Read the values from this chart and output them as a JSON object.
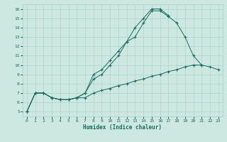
{
  "xlabel": "Humidex (Indice chaleur)",
  "bg_color": "#cce8e0",
  "line_color": "#1a6b60",
  "grid_color": "#aad4cc",
  "xlim": [
    -0.5,
    23.5
  ],
  "ylim": [
    4.5,
    16.5
  ],
  "xticks": [
    0,
    1,
    2,
    3,
    4,
    5,
    6,
    7,
    8,
    9,
    10,
    11,
    12,
    13,
    14,
    15,
    16,
    17,
    18,
    19,
    20,
    21,
    22,
    23
  ],
  "yticks": [
    5,
    6,
    7,
    8,
    9,
    10,
    11,
    12,
    13,
    14,
    15,
    16
  ],
  "line1_x": [
    0,
    1,
    2,
    3,
    4,
    5,
    6,
    7,
    8,
    9,
    10,
    11,
    12,
    13,
    14,
    15,
    16,
    17,
    18,
    19,
    20,
    21,
    22,
    23
  ],
  "line1_y": [
    5.0,
    7.0,
    7.0,
    6.5,
    6.3,
    6.3,
    6.5,
    6.5,
    7.0,
    7.3,
    7.5,
    7.8,
    8.0,
    8.3,
    8.5,
    8.8,
    9.0,
    9.3,
    9.5,
    9.8,
    10.0,
    10.0,
    9.8,
    9.5
  ],
  "line2_x": [
    0,
    1,
    2,
    3,
    4,
    5,
    6,
    7,
    8,
    9,
    10,
    11,
    12,
    13,
    14,
    15,
    16,
    17,
    18,
    19,
    20,
    21,
    22,
    23
  ],
  "line2_y": [
    5.0,
    7.0,
    7.0,
    6.5,
    6.3,
    6.3,
    6.5,
    7.0,
    8.5,
    9.0,
    10.0,
    11.0,
    12.5,
    13.0,
    14.5,
    15.8,
    15.8,
    15.2,
    14.5,
    13.0,
    11.0,
    10.0,
    null,
    null
  ],
  "line3_x": [
    0,
    1,
    2,
    3,
    4,
    5,
    6,
    7,
    8,
    9,
    10,
    11,
    12,
    13,
    14,
    15,
    16,
    17,
    18,
    19,
    20,
    21,
    22,
    23
  ],
  "line3_y": [
    5.0,
    7.0,
    7.0,
    6.5,
    6.3,
    6.3,
    6.5,
    7.0,
    9.0,
    9.5,
    10.5,
    11.5,
    12.5,
    14.0,
    15.0,
    16.0,
    16.0,
    15.3,
    null,
    null,
    null,
    null,
    null,
    null
  ]
}
